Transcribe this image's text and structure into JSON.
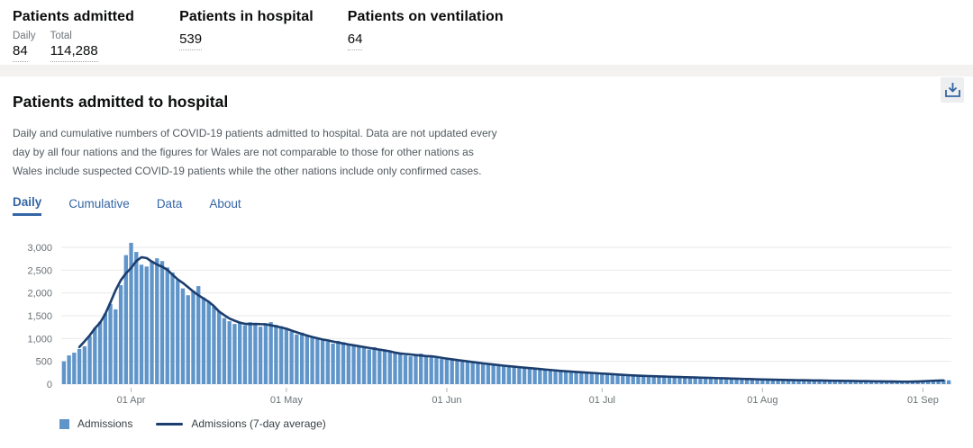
{
  "stats": {
    "admitted": {
      "title": "Patients admitted",
      "daily_label": "Daily",
      "daily_value": "84",
      "total_label": "Total",
      "total_value": "114,288"
    },
    "in_hospital": {
      "title": "Patients in hospital",
      "value": "539"
    },
    "ventilation": {
      "title": "Patients on ventilation",
      "value": "64"
    }
  },
  "panel": {
    "title": "Patients admitted to hospital",
    "description": "Daily and cumulative numbers of COVID-19 patients admitted to hospital. Data are not updated every day by all four nations and the figures for Wales are not comparable to those for other nations as Wales include suspected COVID-19 patients while the other nations include only confirmed cases.",
    "tabs": [
      {
        "label": "Daily",
        "active": true
      },
      {
        "label": "Cumulative",
        "active": false
      },
      {
        "label": "Data",
        "active": false
      },
      {
        "label": "About",
        "active": false
      }
    ],
    "download_icon": "download-icon"
  },
  "chart_data": {
    "type": "bar",
    "title": "Patients admitted to hospital (daily)",
    "start_date": "2020-03-19",
    "ylim": [
      0,
      3000
    ],
    "y_ticks": [
      0,
      500,
      1000,
      1500,
      2000,
      2500,
      3000
    ],
    "x_ticks": [
      {
        "label": "01 Apr",
        "day_index": 13
      },
      {
        "label": "01 May",
        "day_index": 43
      },
      {
        "label": "01 Jun",
        "day_index": 74
      },
      {
        "label": "01 Jul",
        "day_index": 104
      },
      {
        "label": "01 Aug",
        "day_index": 135
      },
      {
        "label": "01 Sep",
        "day_index": 166
      }
    ],
    "grid": true,
    "legend": [
      "Admissions",
      "Admissions (7-day average)"
    ],
    "series": [
      {
        "name": "Admissions",
        "render": "bar",
        "color": "#6095ca"
      },
      {
        "name": "Admissions (7-day average)",
        "render": "line",
        "color": "#1c3e6e",
        "derived": "7-day centered moving average of Admissions values"
      }
    ],
    "values": [
      500,
      630,
      690,
      770,
      830,
      1050,
      1230,
      1370,
      1550,
      1760,
      1640,
      2170,
      2830,
      3100,
      2900,
      2620,
      2580,
      2700,
      2760,
      2700,
      2560,
      2450,
      2280,
      2100,
      1950,
      2050,
      2150,
      1900,
      1800,
      1700,
      1600,
      1450,
      1380,
      1320,
      1340,
      1290,
      1360,
      1310,
      1260,
      1330,
      1360,
      1300,
      1270,
      1210,
      1150,
      1090,
      1130,
      1070,
      1040,
      1010,
      970,
      930,
      890,
      950,
      920,
      880,
      850,
      820,
      790,
      760,
      810,
      780,
      750,
      720,
      690,
      660,
      630,
      610,
      650,
      670,
      640,
      610,
      580,
      550,
      575,
      555,
      535,
      515,
      495,
      475,
      455,
      470,
      450,
      430,
      420,
      405,
      385,
      365,
      380,
      370,
      355,
      345,
      335,
      315,
      295,
      305,
      295,
      285,
      275,
      265,
      255,
      245,
      255,
      245,
      235,
      225,
      215,
      205,
      195,
      205,
      195,
      185,
      180,
      175,
      170,
      165,
      172,
      166,
      160,
      155,
      150,
      146,
      142,
      148,
      143,
      138,
      133,
      128,
      123,
      118,
      124,
      119,
      114,
      109,
      104,
      100,
      96,
      101,
      96,
      92,
      90,
      87,
      85,
      82,
      86,
      83,
      80,
      77,
      75,
      72,
      70,
      74,
      71,
      69,
      66,
      64,
      61,
      59,
      63,
      60,
      58,
      55,
      53,
      51,
      50,
      54,
      60,
      68,
      76,
      85,
      92,
      84
    ],
    "axis_colors": {
      "gridline": "#e9eaec",
      "tick": "#b1b4b6",
      "label": "#6b7276"
    }
  }
}
